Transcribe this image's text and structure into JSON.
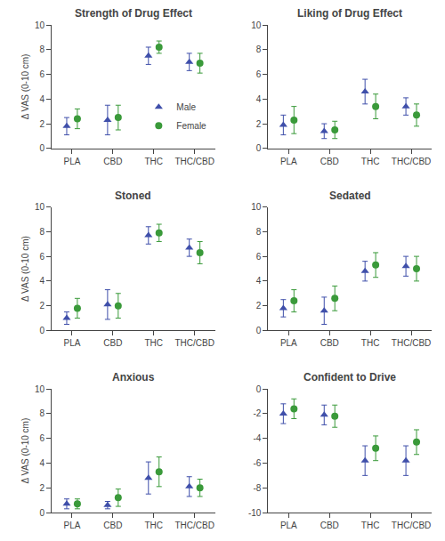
{
  "chart_data": [
    {
      "type": "scatter",
      "title": "Strength of Drug Effect",
      "ylabel": "Δ VAS (0-10 cm)",
      "categories": [
        "PLA",
        "CBD",
        "THC",
        "THC/CBD"
      ],
      "ylim": [
        0,
        10
      ],
      "yticks": [
        0,
        2,
        4,
        6,
        8,
        10
      ],
      "grid": false,
      "legend": "lower right",
      "series": [
        {
          "name": "Male",
          "color": "#3f4faa",
          "marker": "triangle-up",
          "values": [
            1.8,
            2.3,
            7.5,
            7.0
          ],
          "err_lo": [
            0.7,
            1.2,
            0.7,
            0.7
          ],
          "err_hi": [
            0.7,
            1.2,
            0.7,
            0.7
          ]
        },
        {
          "name": "Female",
          "color": "#3a9a3a",
          "marker": "circle",
          "values": [
            2.4,
            2.5,
            8.2,
            6.9
          ],
          "err_lo": [
            0.8,
            1.0,
            0.5,
            0.8
          ],
          "err_hi": [
            0.8,
            1.0,
            0.5,
            0.8
          ]
        }
      ]
    },
    {
      "type": "scatter",
      "title": "Liking of Drug Effect",
      "categories": [
        "PLA",
        "CBD",
        "THC",
        "THC/CBD"
      ],
      "ylim": [
        0,
        10
      ],
      "yticks": [
        0,
        2,
        4,
        6,
        8,
        10
      ],
      "grid": false,
      "series": [
        {
          "name": "Male",
          "color": "#3f4faa",
          "marker": "triangle-up",
          "values": [
            1.9,
            1.4,
            4.6,
            3.4
          ],
          "err_lo": [
            0.8,
            0.6,
            1.0,
            0.7
          ],
          "err_hi": [
            0.8,
            0.6,
            1.0,
            0.7
          ]
        },
        {
          "name": "Female",
          "color": "#3a9a3a",
          "marker": "circle",
          "values": [
            2.3,
            1.5,
            3.4,
            2.7
          ],
          "err_lo": [
            1.1,
            0.7,
            1.0,
            0.9
          ],
          "err_hi": [
            1.1,
            0.7,
            1.0,
            0.9
          ]
        }
      ]
    },
    {
      "type": "scatter",
      "title": "Stoned",
      "ylabel": "Δ VAS (0-10 cm)",
      "categories": [
        "PLA",
        "CBD",
        "THC",
        "THC/CBD"
      ],
      "ylim": [
        0,
        10
      ],
      "yticks": [
        0,
        2,
        4,
        6,
        8,
        10
      ],
      "grid": false,
      "series": [
        {
          "name": "Male",
          "color": "#3f4faa",
          "marker": "triangle-up",
          "values": [
            1.0,
            2.1,
            7.7,
            6.7
          ],
          "err_lo": [
            0.5,
            1.2,
            0.7,
            0.7
          ],
          "err_hi": [
            0.5,
            1.2,
            0.7,
            0.7
          ]
        },
        {
          "name": "Female",
          "color": "#3a9a3a",
          "marker": "circle",
          "values": [
            1.8,
            2.0,
            7.9,
            6.3
          ],
          "err_lo": [
            0.8,
            1.0,
            0.7,
            0.9
          ],
          "err_hi": [
            0.8,
            1.0,
            0.7,
            0.9
          ]
        }
      ]
    },
    {
      "type": "scatter",
      "title": "Sedated",
      "categories": [
        "PLA",
        "CBD",
        "THC",
        "THC/CBD"
      ],
      "ylim": [
        0,
        10
      ],
      "yticks": [
        0,
        2,
        4,
        6,
        8,
        10
      ],
      "grid": false,
      "series": [
        {
          "name": "Male",
          "color": "#3f4faa",
          "marker": "triangle-up",
          "values": [
            1.8,
            1.6,
            4.8,
            5.2
          ],
          "err_lo": [
            0.7,
            1.1,
            0.8,
            0.8
          ],
          "err_hi": [
            0.7,
            1.1,
            0.8,
            0.8
          ]
        },
        {
          "name": "Female",
          "color": "#3a9a3a",
          "marker": "circle",
          "values": [
            2.4,
            2.6,
            5.3,
            5.0
          ],
          "err_lo": [
            0.9,
            1.0,
            1.0,
            1.0
          ],
          "err_hi": [
            0.9,
            1.0,
            1.0,
            1.0
          ]
        }
      ]
    },
    {
      "type": "scatter",
      "title": "Anxious",
      "ylabel": "Δ VAS (0-10 cm)",
      "categories": [
        "PLA",
        "CBD",
        "THC",
        "THC/CBD"
      ],
      "ylim": [
        0,
        10
      ],
      "yticks": [
        0,
        2,
        4,
        6,
        8,
        10
      ],
      "grid": false,
      "series": [
        {
          "name": "Male",
          "color": "#3f4faa",
          "marker": "triangle-up",
          "values": [
            0.7,
            0.6,
            2.8,
            2.1
          ],
          "err_lo": [
            0.4,
            0.3,
            1.3,
            0.8
          ],
          "err_hi": [
            0.4,
            0.3,
            1.3,
            0.8
          ]
        },
        {
          "name": "Female",
          "color": "#3a9a3a",
          "marker": "circle",
          "values": [
            0.7,
            1.2,
            3.3,
            2.0
          ],
          "err_lo": [
            0.4,
            0.7,
            1.2,
            0.7
          ],
          "err_hi": [
            0.4,
            0.7,
            1.2,
            0.7
          ]
        }
      ]
    },
    {
      "type": "scatter",
      "title": "Confident to Drive",
      "categories": [
        "PLA",
        "CBD",
        "THC",
        "THC/CBD"
      ],
      "ylim": [
        -10,
        0
      ],
      "yticks": [
        -10,
        -8,
        -6,
        -4,
        -2,
        0
      ],
      "grid": false,
      "series": [
        {
          "name": "Male",
          "color": "#3f4faa",
          "marker": "triangle-up",
          "values": [
            -2.0,
            -2.1,
            -5.8,
            -5.8
          ],
          "err_lo": [
            0.8,
            0.8,
            1.2,
            1.2
          ],
          "err_hi": [
            0.8,
            0.8,
            1.2,
            1.2
          ]
        },
        {
          "name": "Female",
          "color": "#3a9a3a",
          "marker": "circle",
          "values": [
            -1.6,
            -2.2,
            -4.8,
            -4.3
          ],
          "err_lo": [
            0.8,
            0.9,
            1.0,
            1.0
          ],
          "err_hi": [
            0.8,
            0.9,
            1.0,
            1.0
          ]
        }
      ]
    }
  ]
}
